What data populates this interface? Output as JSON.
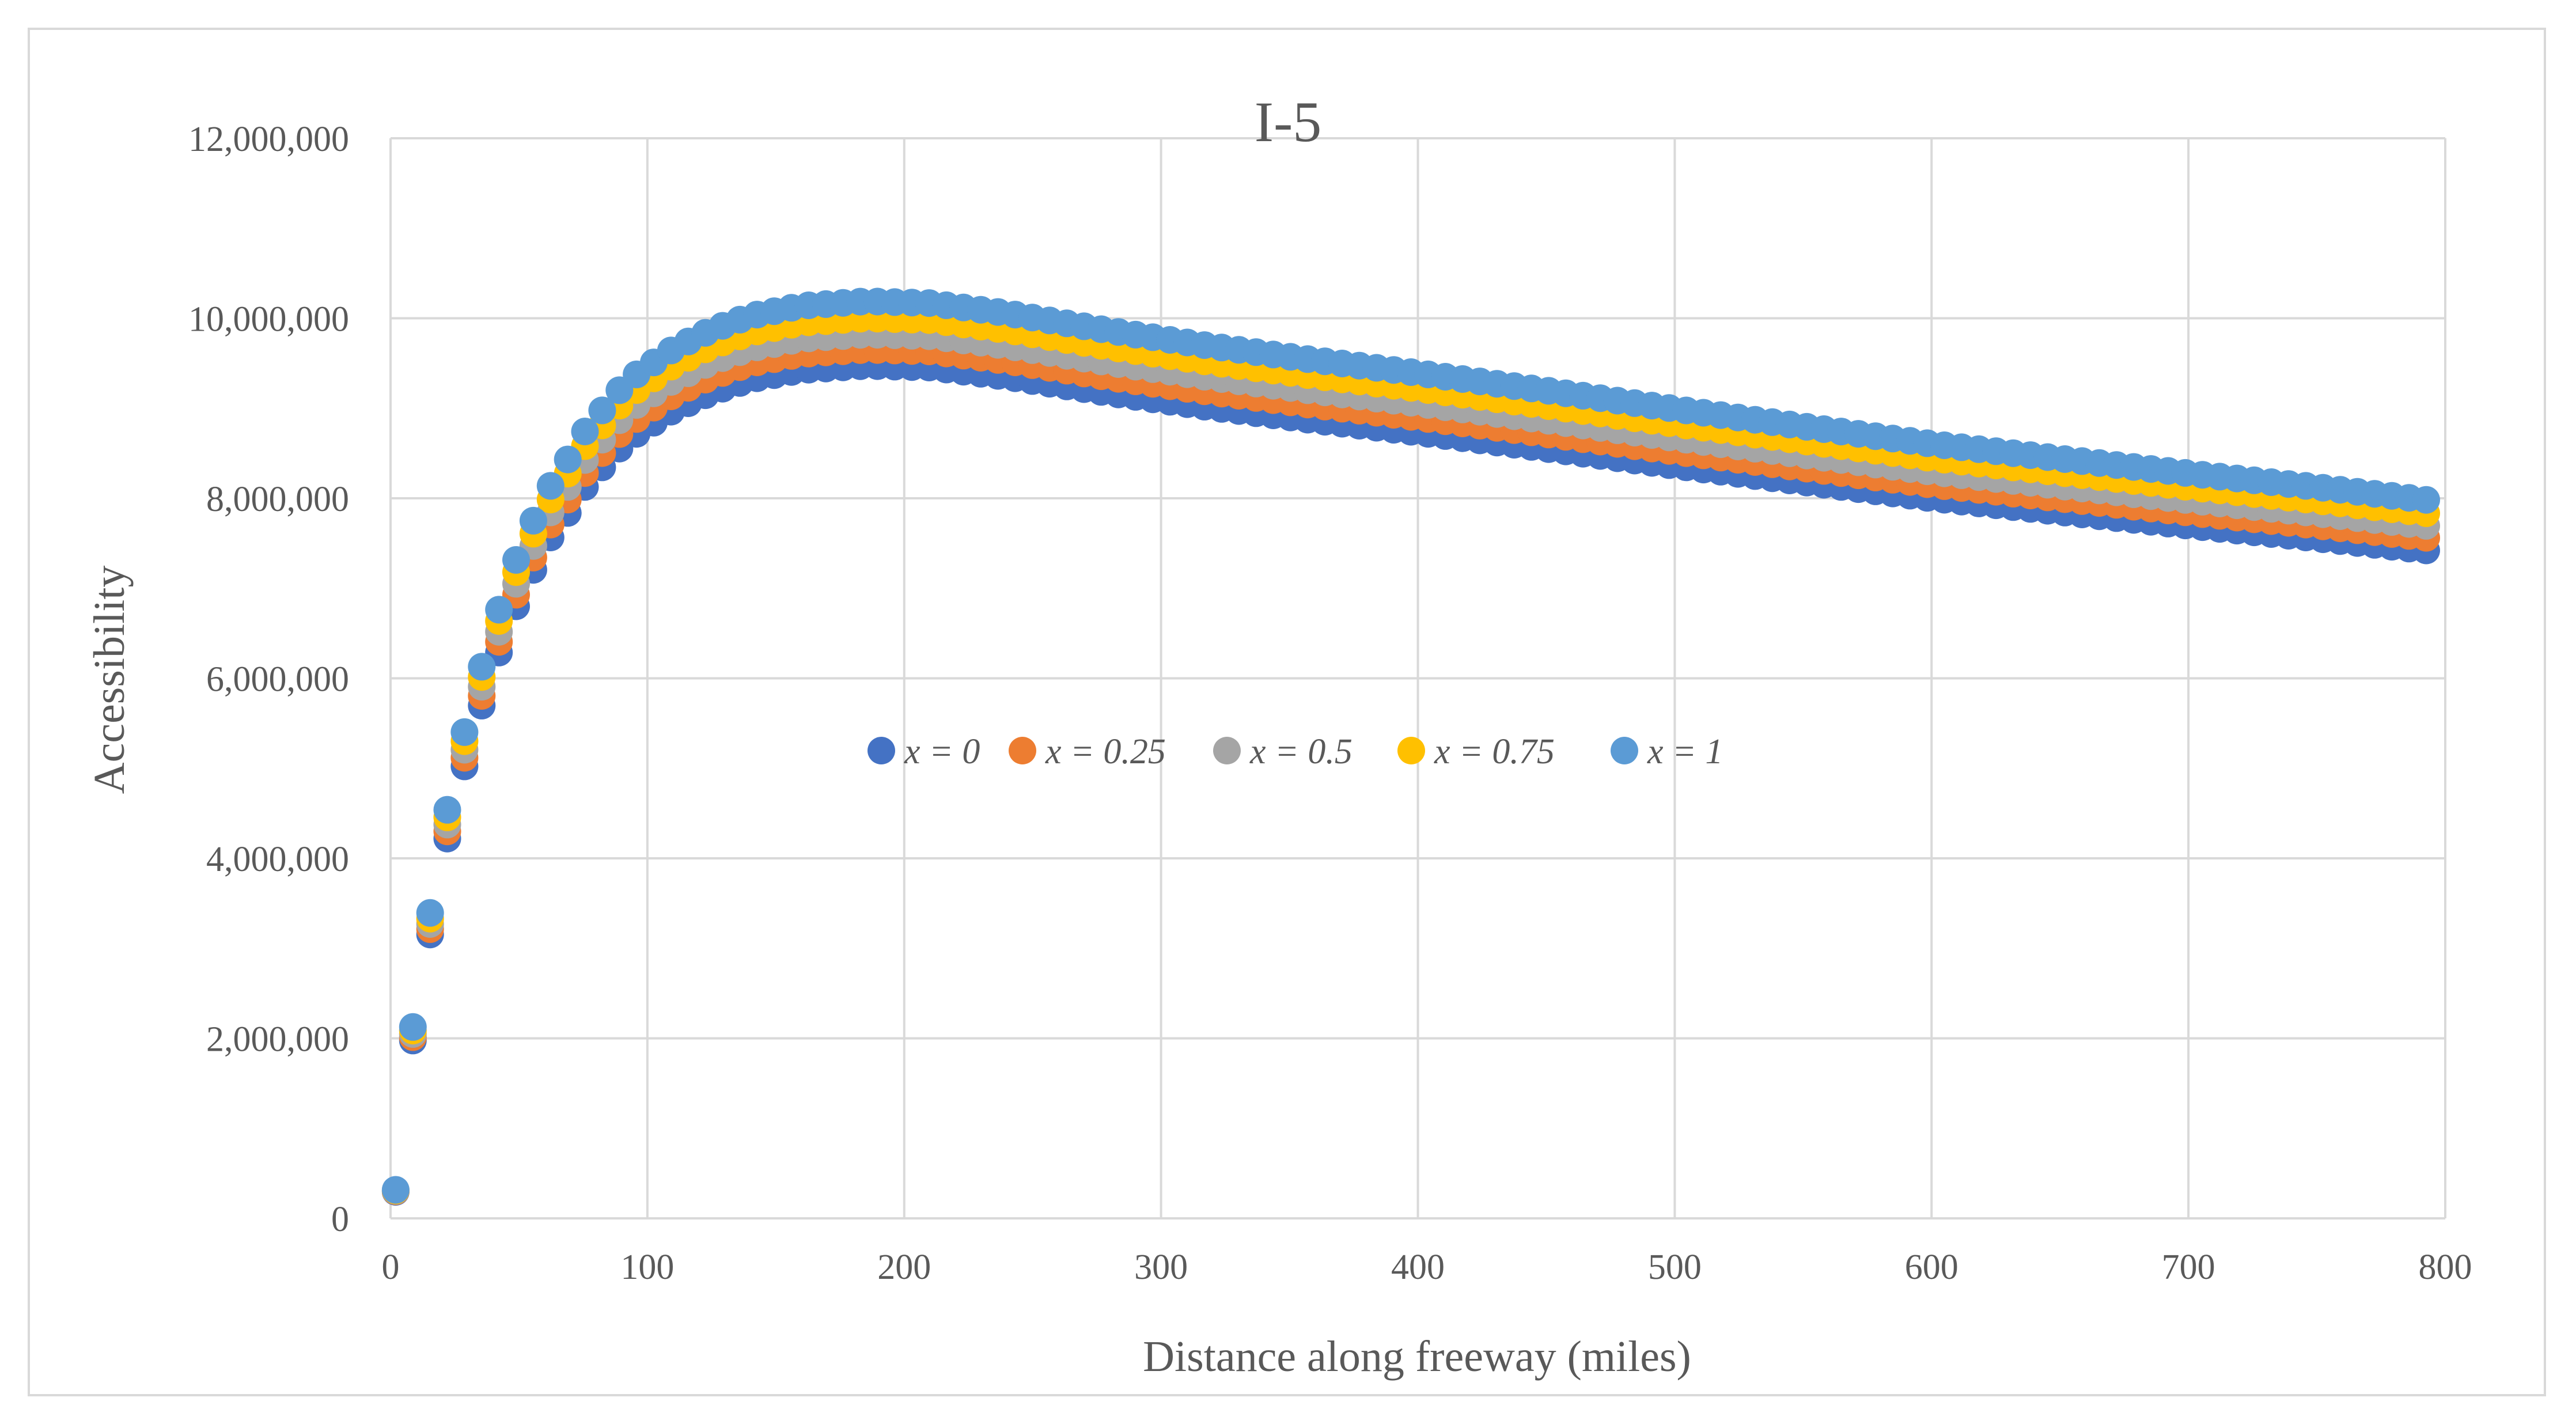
{
  "chart_data": {
    "type": "scatter",
    "title": "I-5",
    "xlabel": "Distance along freeway (miles)",
    "ylabel": "Accessibility",
    "xlim": [
      0,
      800
    ],
    "ylim": [
      0,
      12000000
    ],
    "x_ticks": [
      0,
      100,
      200,
      300,
      400,
      500,
      600,
      700,
      800
    ],
    "x_tick_labels": [
      "0",
      "100",
      "200",
      "300",
      "400",
      "500",
      "600",
      "700",
      "800"
    ],
    "y_ticks": [
      0,
      2000000,
      4000000,
      6000000,
      8000000,
      10000000,
      12000000
    ],
    "y_tick_labels": [
      "0",
      "2,000,000",
      "4,000,000",
      "6,000,000",
      "8,000,000",
      "10,000,000",
      "12,000,000"
    ],
    "grid": true,
    "legend_position": "center",
    "x_start": 2,
    "x_step": 6.7,
    "x_end": 796,
    "curve_shape": [
      [
        2,
        0.031
      ],
      [
        8,
        0.195
      ],
      [
        15,
        0.325
      ],
      [
        21,
        0.43
      ],
      [
        28,
        0.52
      ],
      [
        35,
        0.595
      ],
      [
        42,
        0.66
      ],
      [
        48,
        0.71
      ],
      [
        55,
        0.755
      ],
      [
        62,
        0.795
      ],
      [
        69,
        0.825
      ],
      [
        75,
        0.853
      ],
      [
        82,
        0.877
      ],
      [
        89,
        0.9
      ],
      [
        96,
        0.918
      ],
      [
        110,
        0.945
      ],
      [
        125,
        0.966
      ],
      [
        140,
        0.981
      ],
      [
        160,
        0.992
      ],
      [
        185,
        0.997
      ],
      [
        210,
        0.995
      ],
      [
        240,
        0.984
      ],
      [
        280,
        0.965
      ],
      [
        320,
        0.948
      ],
      [
        360,
        0.933
      ],
      [
        400,
        0.919
      ],
      [
        450,
        0.9
      ],
      [
        500,
        0.88
      ],
      [
        550,
        0.861
      ],
      [
        600,
        0.842
      ],
      [
        650,
        0.826
      ],
      [
        700,
        0.81
      ],
      [
        750,
        0.795
      ],
      [
        796,
        0.78
      ]
    ],
    "series": [
      {
        "name": "x = 0",
        "peak": 9500000,
        "color": "#4472c4"
      },
      {
        "name": "x = 0.25",
        "peak": 9680000,
        "color": "#ed7d31"
      },
      {
        "name": "x = 0.5",
        "peak": 9850000,
        "color": "#a5a5a5"
      },
      {
        "name": "x = 0.75",
        "peak": 10030000,
        "color": "#ffc000"
      },
      {
        "name": "x = 1",
        "peak": 10220000,
        "color": "#5b9bd5"
      }
    ]
  }
}
